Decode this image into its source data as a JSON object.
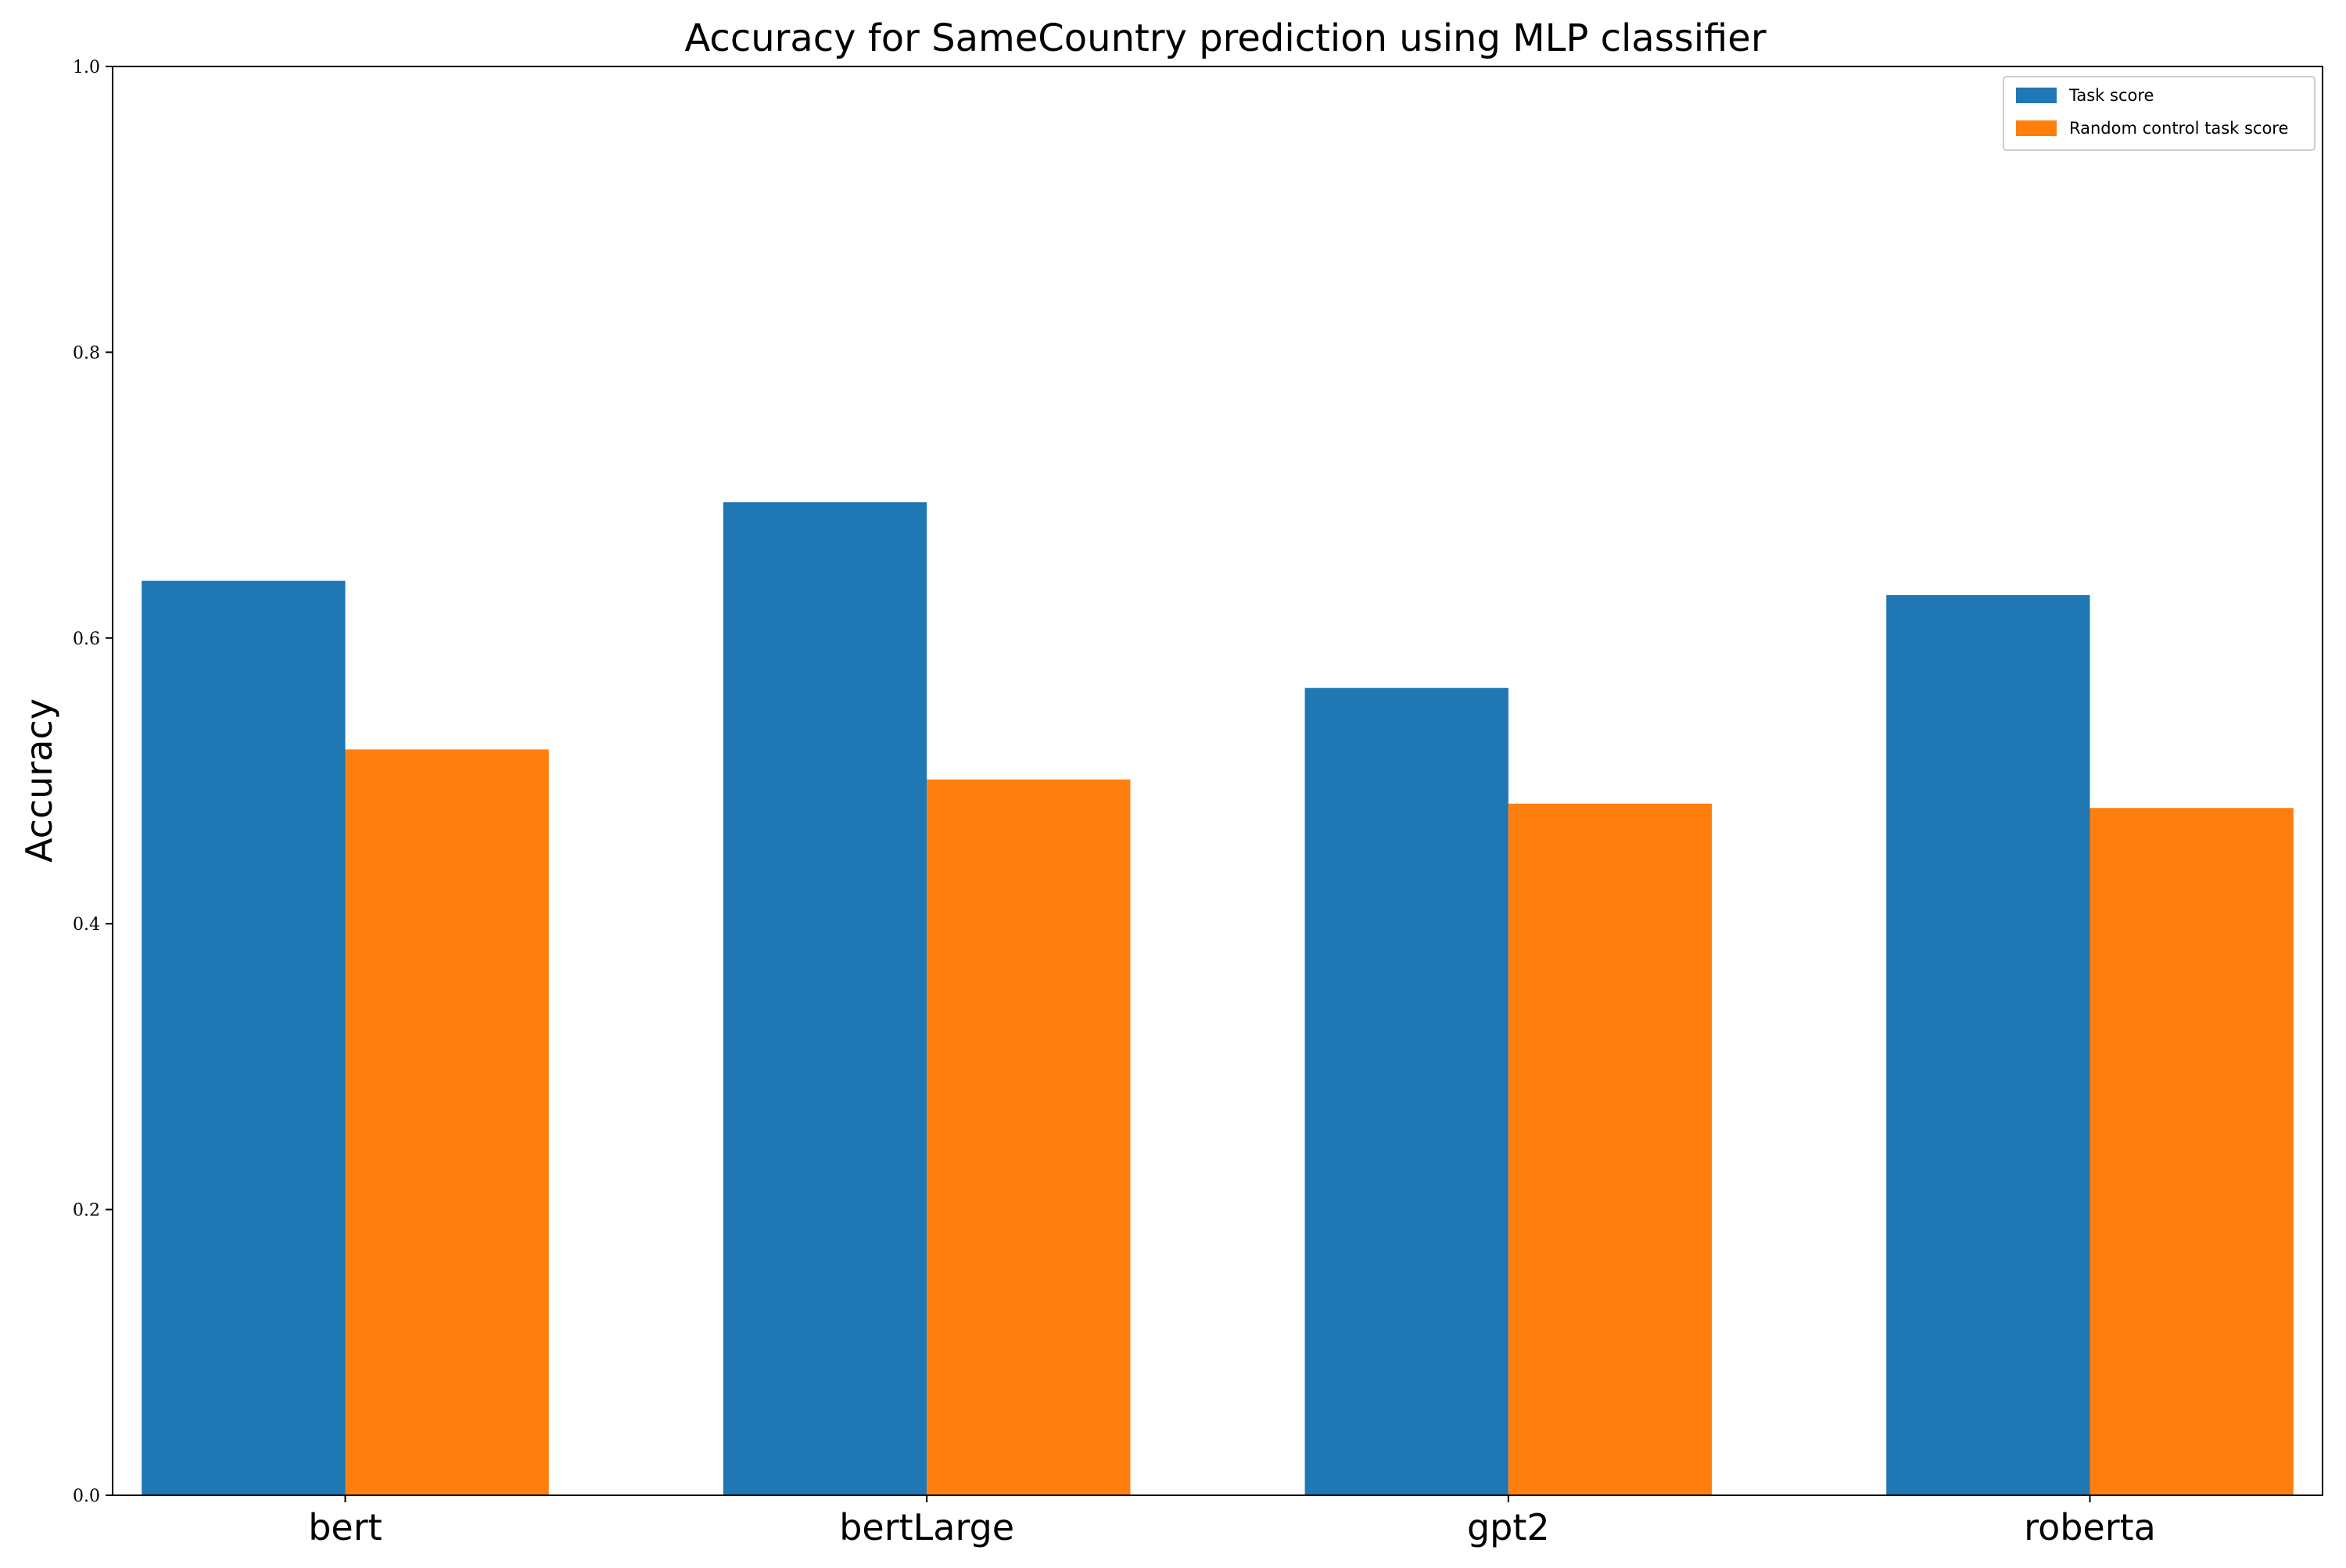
{
  "chart_data": {
    "type": "bar",
    "title": "Accuracy for SameCountry prediction using MLP classifier",
    "xlabel": "",
    "ylabel": "Accuracy",
    "categories": [
      "bert",
      "bertLarge",
      "gpt2",
      "roberta"
    ],
    "series": [
      {
        "name": "Task score",
        "color": "#1f77b4",
        "values": [
          0.64,
          0.695,
          0.565,
          0.63
        ]
      },
      {
        "name": "Random control task score",
        "color": "#ff7f0e",
        "values": [
          0.522,
          0.501,
          0.484,
          0.481
        ]
      }
    ],
    "ylim": [
      0,
      1.0
    ],
    "yticks": [
      0.0,
      0.2,
      0.4,
      0.6,
      0.8,
      1.0
    ],
    "ytick_labels": [
      "0.0",
      "0.2",
      "0.4",
      "0.6",
      "0.8",
      "1.0"
    ],
    "grid": false,
    "legend_position": "top-right"
  }
}
